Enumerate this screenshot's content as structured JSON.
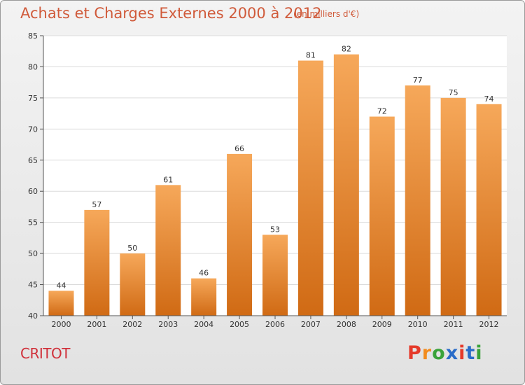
{
  "header": {
    "title": "Achats et Charges Externes 2000 à 2012",
    "subtitle": "(en milliers d'€)"
  },
  "footer": {
    "commune": "CRITOT",
    "logo_text": "Proxiti"
  },
  "colors": {
    "bar_top": "#f6a85a",
    "bar_bottom": "#d06a14",
    "title": "#d05a3a",
    "commune": "#d0303a",
    "logo_letters": [
      "#e53a2a",
      "#f28c1e",
      "#3aa33a",
      "#2a6cc8",
      "#e53a2a",
      "#2a6cc8",
      "#3aa33a"
    ]
  },
  "chart_data": {
    "type": "bar",
    "title": "Achats et Charges Externes 2000 à 2012",
    "subtitle": "(en milliers d'€)",
    "categories": [
      "2000",
      "2001",
      "2002",
      "2003",
      "2004",
      "2005",
      "2006",
      "2007",
      "2008",
      "2009",
      "2010",
      "2011",
      "2012"
    ],
    "values": [
      44,
      57,
      50,
      61,
      46,
      66,
      53,
      81,
      82,
      72,
      77,
      75,
      74
    ],
    "ylim": [
      40,
      85
    ],
    "yticks": [
      40,
      45,
      50,
      55,
      60,
      65,
      70,
      75,
      80,
      85
    ],
    "grid": true,
    "xlabel": "",
    "ylabel": ""
  }
}
